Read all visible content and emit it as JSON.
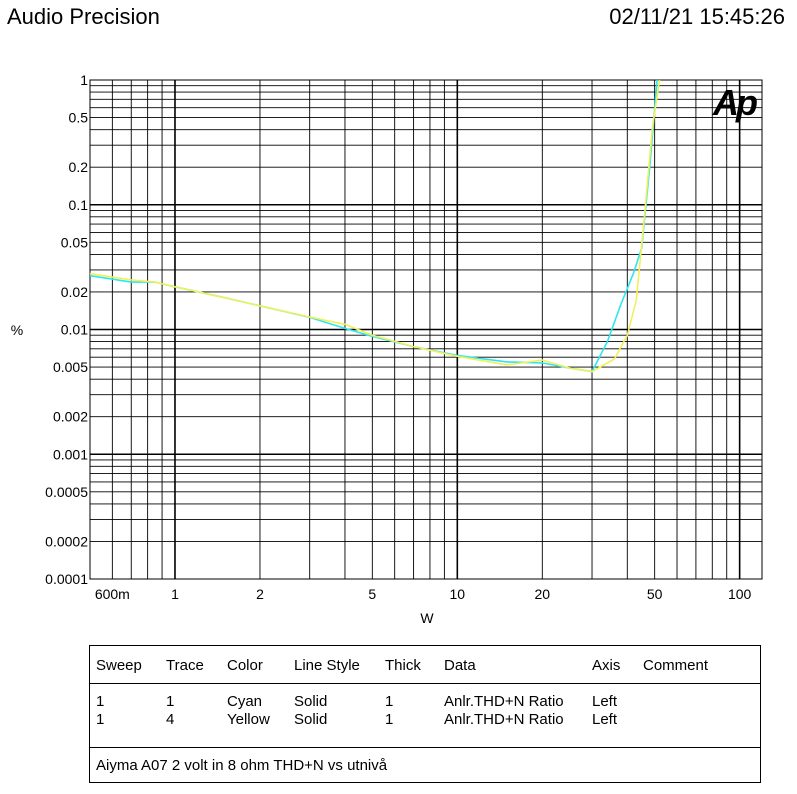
{
  "header": {
    "title": "Audio Precision",
    "timestamp": "02/11/21 15:45:26"
  },
  "chart_data": {
    "type": "line",
    "x_scale": "log",
    "y_scale": "log",
    "xlim": [
      0.5,
      120
    ],
    "ylim": [
      0.0001,
      1
    ],
    "xlabel": "W",
    "ylabel": "%",
    "grid": true,
    "logo": "Ap",
    "logo_color": "#1a3fcc",
    "x_ticks": [
      {
        "value": 0.6,
        "label": "600m"
      },
      {
        "value": 1,
        "label": "1"
      },
      {
        "value": 2,
        "label": "2"
      },
      {
        "value": 5,
        "label": "5"
      },
      {
        "value": 10,
        "label": "10"
      },
      {
        "value": 20,
        "label": "20"
      },
      {
        "value": 50,
        "label": "50"
      },
      {
        "value": 100,
        "label": "100"
      }
    ],
    "y_ticks": [
      {
        "value": 1,
        "label": "1"
      },
      {
        "value": 0.5,
        "label": "0.5"
      },
      {
        "value": 0.2,
        "label": "0.2"
      },
      {
        "value": 0.1,
        "label": "0.1"
      },
      {
        "value": 0.05,
        "label": "0.05"
      },
      {
        "value": 0.02,
        "label": "0.02"
      },
      {
        "value": 0.01,
        "label": "0.01"
      },
      {
        "value": 0.005,
        "label": "0.005"
      },
      {
        "value": 0.002,
        "label": "0.002"
      },
      {
        "value": 0.001,
        "label": "0.001"
      },
      {
        "value": 0.0005,
        "label": "0.0005"
      },
      {
        "value": 0.0002,
        "label": "0.0002"
      },
      {
        "value": 0.0001,
        "label": "0.0001"
      }
    ],
    "series": [
      {
        "color": "#2ee6f0",
        "x": [
          0.5,
          0.7,
          0.85,
          1.0,
          1.5,
          2.0,
          3.0,
          4.0,
          5.0,
          7.0,
          10.0,
          15.0,
          20.0,
          25.0,
          30.0,
          34.0,
          38.0,
          42.0,
          45.0,
          48.0,
          51.0
        ],
        "y": [
          0.027,
          0.024,
          0.024,
          0.022,
          0.018,
          0.0155,
          0.0125,
          0.0102,
          0.0088,
          0.0073,
          0.0062,
          0.0055,
          0.0054,
          0.0049,
          0.0046,
          0.008,
          0.016,
          0.028,
          0.045,
          0.2,
          1.0
        ]
      },
      {
        "color": "#f2f05a",
        "x": [
          0.5,
          0.7,
          0.85,
          1.0,
          1.5,
          2.0,
          3.0,
          4.0,
          5.0,
          7.0,
          10.0,
          15.0,
          20.0,
          25.0,
          30.0,
          36.0,
          40.0,
          43.0,
          46.0,
          49.0,
          52.0
        ],
        "y": [
          0.028,
          0.025,
          0.024,
          0.022,
          0.018,
          0.0155,
          0.0126,
          0.011,
          0.009,
          0.0073,
          0.0061,
          0.0052,
          0.0057,
          0.0049,
          0.0046,
          0.0058,
          0.009,
          0.017,
          0.08,
          0.4,
          1.0
        ]
      }
    ]
  },
  "legend": {
    "headers": [
      "Sweep",
      "Trace",
      "Color",
      "Line Style",
      "Thick",
      "Data",
      "Axis",
      "Comment"
    ],
    "rows": [
      [
        "1",
        "1",
        "Cyan",
        "Solid",
        "1",
        "Anlr.THD+N Ratio",
        "Left",
        ""
      ],
      [
        "1",
        "4",
        "Yellow",
        "Solid",
        "1",
        "Anlr.THD+N Ratio",
        "Left",
        ""
      ]
    ],
    "comment": "Aiyma A07 2 volt in 8 ohm THD+N vs utnivå"
  }
}
